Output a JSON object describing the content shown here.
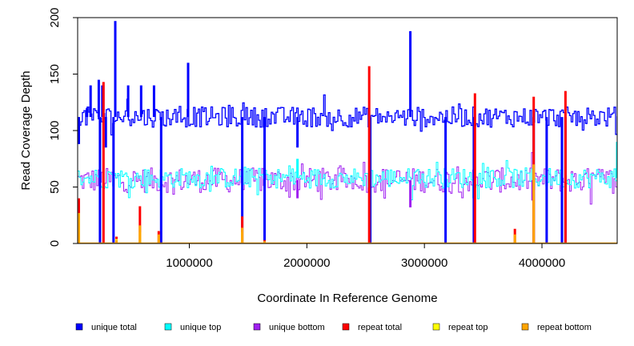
{
  "chart_data": {
    "type": "line",
    "xlabel": "Coordinate In Reference Genome",
    "ylabel": "Read Coverage Depth",
    "xlim": [
      50000,
      4640000
    ],
    "ylim": [
      0,
      200
    ],
    "x_ticks": [
      1000000,
      2000000,
      3000000,
      4000000
    ],
    "x_tick_labels": [
      "1000000",
      "2000000",
      "3000000",
      "4000000"
    ],
    "y_ticks": [
      0,
      50,
      100,
      150,
      200
    ],
    "y_tick_labels": [
      "0",
      "50",
      "100",
      "150",
      "200"
    ],
    "grid": false,
    "legend_position": "bottom",
    "legend": [
      {
        "name": "unique total",
        "color": "#0000ff"
      },
      {
        "name": "unique top",
        "color": "#00ffff"
      },
      {
        "name": "unique bottom",
        "color": "#a020f0"
      },
      {
        "name": "repeat total",
        "color": "#ff0000"
      },
      {
        "name": "repeat top",
        "color": "#ffff00"
      },
      {
        "name": "repeat bottom",
        "color": "#ffa500"
      }
    ],
    "series": [
      {
        "name": "unique total",
        "color": "#0000ff",
        "baseline": 112,
        "noise": 9,
        "spikes": [
          [
            60000,
            88
          ],
          [
            130000,
            120
          ],
          [
            160000,
            140
          ],
          [
            230000,
            145
          ],
          [
            240000,
            0
          ],
          [
            260000,
            140
          ],
          [
            290000,
            85
          ],
          [
            355000,
            0
          ],
          [
            370000,
            197
          ],
          [
            480000,
            140
          ],
          [
            590000,
            140
          ],
          [
            700000,
            140
          ],
          [
            760000,
            0
          ],
          [
            990000,
            160
          ],
          [
            1450000,
            0
          ],
          [
            1640000,
            0
          ],
          [
            1920000,
            85
          ],
          [
            2540000,
            0
          ],
          [
            2880000,
            188
          ],
          [
            3180000,
            0
          ],
          [
            3420000,
            0
          ],
          [
            3930000,
            0
          ],
          [
            4040000,
            0
          ],
          [
            4170000,
            0
          ],
          [
            4200000,
            0
          ]
        ]
      },
      {
        "name": "unique top",
        "color": "#00ffff",
        "baseline": 58,
        "noise": 9,
        "spikes": [
          [
            1920000,
            75
          ],
          [
            4640000,
            90
          ]
        ]
      },
      {
        "name": "unique bottom",
        "color": "#a020f0",
        "baseline": 56,
        "noise": 11,
        "spikes": [
          [
            1920000,
            40
          ],
          [
            2880000,
            32
          ],
          [
            3920000,
            38
          ]
        ]
      },
      {
        "name": "repeat total",
        "color": "#ff0000",
        "spikes": [
          [
            60000,
            40
          ],
          [
            270000,
            143
          ],
          [
            380000,
            6
          ],
          [
            580000,
            33
          ],
          [
            740000,
            11
          ],
          [
            1450000,
            24
          ],
          [
            1640000,
            3
          ],
          [
            2530000,
            157
          ],
          [
            3430000,
            133
          ],
          [
            3770000,
            13
          ],
          [
            3930000,
            130
          ],
          [
            4200000,
            135
          ]
        ]
      },
      {
        "name": "repeat top",
        "color": "#ffff00",
        "spikes": [
          [
            60000,
            15
          ],
          [
            380000,
            4
          ],
          [
            580000,
            10
          ],
          [
            1450000,
            10
          ]
        ]
      },
      {
        "name": "repeat bottom",
        "color": "#ffa500",
        "spikes": [
          [
            60000,
            27
          ],
          [
            380000,
            3
          ],
          [
            580000,
            16
          ],
          [
            740000,
            8
          ],
          [
            1450000,
            14
          ],
          [
            1640000,
            2
          ],
          [
            3770000,
            8
          ],
          [
            3930000,
            70
          ]
        ]
      }
    ]
  }
}
